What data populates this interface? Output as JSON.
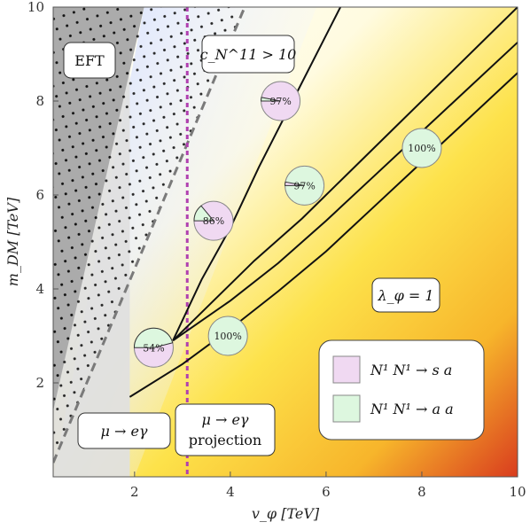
{
  "chart_data": {
    "type": "region",
    "xlabel": "v_φ  [TeV]",
    "ylabel": "m_DM  [TeV]",
    "xlim": [
      0.3,
      10
    ],
    "ylim": [
      0,
      10
    ],
    "x_ticks": [
      2,
      4,
      6,
      8,
      10
    ],
    "y_ticks": [
      2,
      4,
      6,
      8,
      10
    ],
    "grid": false,
    "annotations": [
      {
        "id": "eft",
        "text": "EFT",
        "x": 1.05,
        "y": 8.8
      },
      {
        "id": "cn",
        "text": "c_N^11 > 10",
        "x": 5.05,
        "y": 8.8
      },
      {
        "id": "lambda",
        "text": "λ_φ = 1",
        "x": 7.8,
        "y": 3.75
      },
      {
        "id": "mueg",
        "text": "μ → eγ",
        "x": 1.15,
        "y": 0.8
      },
      {
        "id": "mueg-proj",
        "text": "μ → eγ",
        "text2": "projection",
        "x": 3.35,
        "y": 0.95
      }
    ],
    "pies": [
      {
        "x": 2.4,
        "y": 2.75,
        "label": "54%",
        "sa_fraction": 0.54
      },
      {
        "x": 3.65,
        "y": 5.45,
        "label": "86%",
        "sa_fraction": 0.86
      },
      {
        "x": 5.05,
        "y": 8.0,
        "label": "97%",
        "sa_fraction": 0.97
      },
      {
        "x": 3.95,
        "y": 3.0,
        "label": "100%",
        "sa_fraction": 0.0
      },
      {
        "x": 5.55,
        "y": 6.2,
        "label": "97%",
        "sa_fraction": 0.03
      },
      {
        "x": 8.0,
        "y": 7.0,
        "label": "100%",
        "sa_fraction": 0.0
      }
    ],
    "legend": {
      "placement": "bottom-right",
      "entries": [
        {
          "label": "N¹ N¹ → s a",
          "color": "#f0d9f2"
        },
        {
          "label": "N¹ N¹ → a a",
          "color": "#ddf7df"
        }
      ]
    },
    "regions": {
      "eft_excluded": {
        "color": "#a9a9a9"
      },
      "mueg_excluded": {
        "boundary_x": 1.9,
        "color": "#e0e0e0"
      },
      "projection_x": 3.1,
      "projection_color": "#b040b0",
      "cn_boundary_dashed": [
        [
          0.3,
          0.3
        ],
        [
          4.3,
          10
        ]
      ]
    },
    "curves": [
      {
        "name": "upper",
        "points": [
          [
            2.8,
            2.9
          ],
          [
            3.4,
            4.2
          ],
          [
            4.0,
            5.3
          ],
          [
            4.6,
            6.6
          ],
          [
            5.3,
            8.0
          ],
          [
            6.1,
            9.6
          ],
          [
            6.3,
            10
          ]
        ]
      },
      {
        "name": "lower-left",
        "points": [
          [
            2.8,
            2.9
          ],
          [
            3.5,
            3.6
          ],
          [
            4.5,
            4.6
          ],
          [
            5.5,
            5.5
          ],
          [
            6.5,
            6.5
          ],
          [
            7.5,
            7.5
          ],
          [
            8.5,
            8.5
          ],
          [
            9.5,
            9.5
          ],
          [
            10,
            10
          ]
        ]
      },
      {
        "name": "lower-mid",
        "points": [
          [
            2.8,
            2.9
          ],
          [
            4.0,
            3.75
          ],
          [
            5.0,
            4.55
          ],
          [
            6.0,
            5.45
          ],
          [
            7.0,
            6.4
          ],
          [
            8.0,
            7.35
          ],
          [
            9.0,
            8.3
          ],
          [
            10,
            9.25
          ]
        ]
      },
      {
        "name": "lower-right",
        "points": [
          [
            1.9,
            1.7
          ],
          [
            3.0,
            2.4
          ],
          [
            4.0,
            3.15
          ],
          [
            5.0,
            3.95
          ],
          [
            6.0,
            4.8
          ],
          [
            7.0,
            5.75
          ],
          [
            8.0,
            6.7
          ],
          [
            9.0,
            7.65
          ],
          [
            10,
            8.6
          ]
        ]
      }
    ]
  }
}
